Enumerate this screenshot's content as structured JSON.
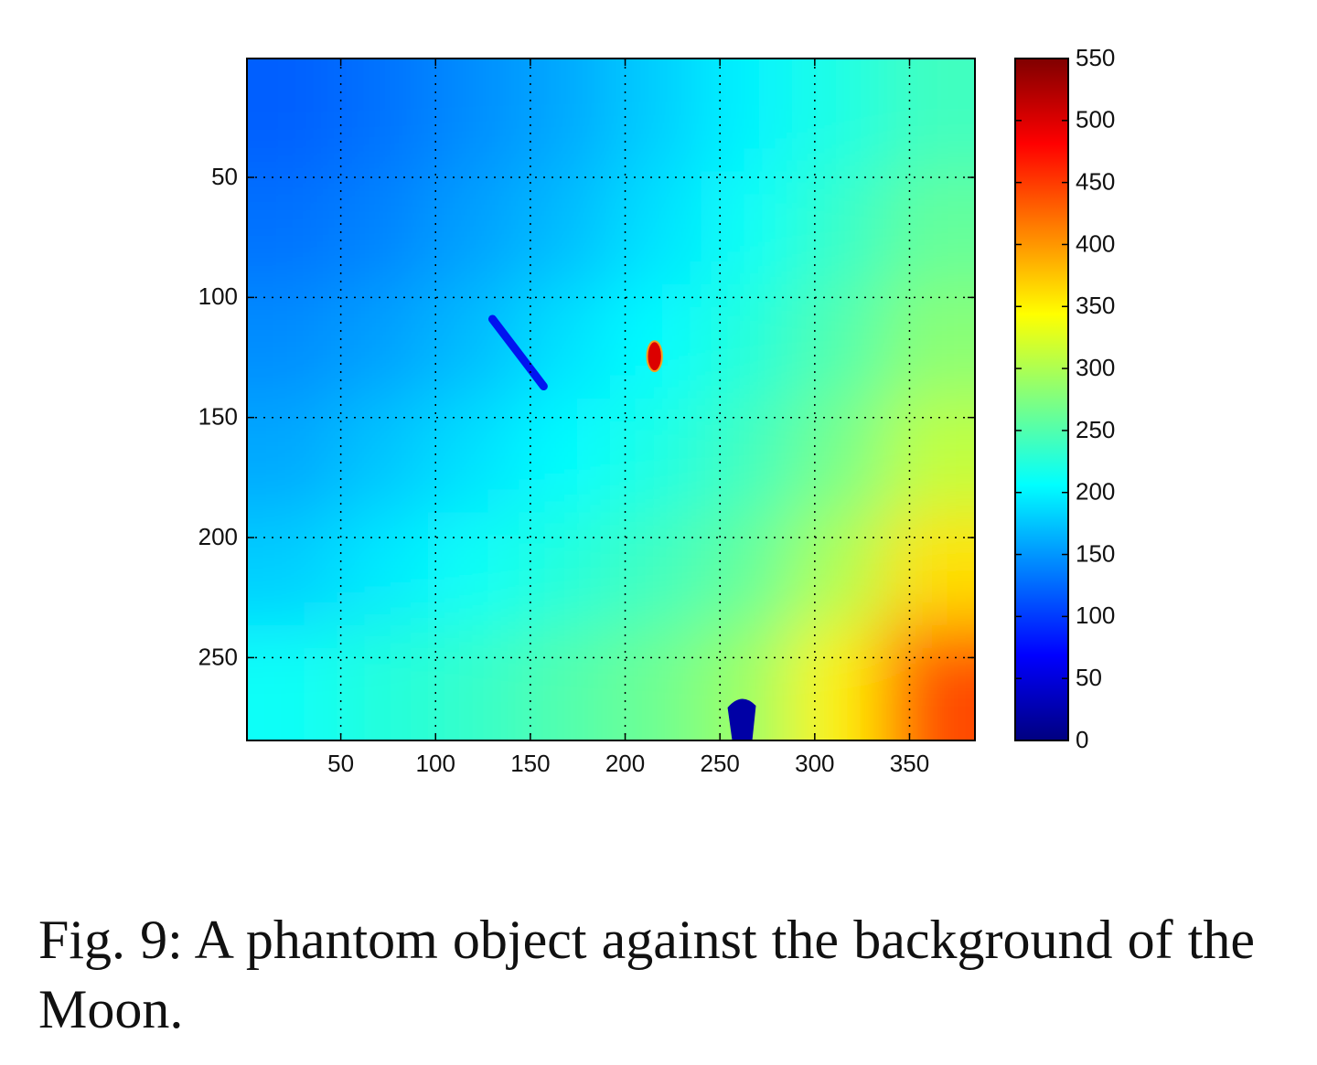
{
  "chart_data": {
    "type": "heatmap",
    "x": [
      24,
      72,
      120,
      168,
      216,
      264,
      312,
      360
    ],
    "y": [
      24,
      71,
      118,
      166,
      213,
      260
    ],
    "values": [
      [
        120,
        130,
        145,
        160,
        180,
        200,
        220,
        240
      ],
      [
        130,
        140,
        155,
        170,
        190,
        210,
        235,
        260
      ],
      [
        145,
        155,
        170,
        190,
        205,
        225,
        250,
        280
      ],
      [
        160,
        175,
        190,
        205,
        220,
        240,
        270,
        310
      ],
      [
        180,
        195,
        210,
        225,
        240,
        260,
        300,
        360
      ],
      [
        210,
        225,
        235,
        250,
        265,
        290,
        350,
        440
      ]
    ],
    "objects": [
      {
        "x": [
          130,
          157
        ],
        "y": [
          109,
          137
        ],
        "value": 60
      },
      {
        "x": [
          213,
          218
        ],
        "y": [
          119,
          130
        ],
        "value": 500
      },
      {
        "x": [
          255,
          268
        ],
        "y": [
          267,
          284.5
        ],
        "value": 20
      }
    ],
    "xlim": [
      0.5,
      384.5
    ],
    "ylim": [
      284.5,
      0.5
    ],
    "xticks": [
      50,
      100,
      150,
      200,
      250,
      300,
      350
    ],
    "yticks": [
      50,
      100,
      150,
      200,
      250
    ],
    "clim": [
      0,
      550
    ],
    "cticks": [
      0,
      50,
      100,
      150,
      200,
      250,
      300,
      350,
      400,
      450,
      500,
      550
    ],
    "colormap": "jet",
    "grid": true
  },
  "caption": "Fig. 9: A phantom object against the background of the Moon."
}
